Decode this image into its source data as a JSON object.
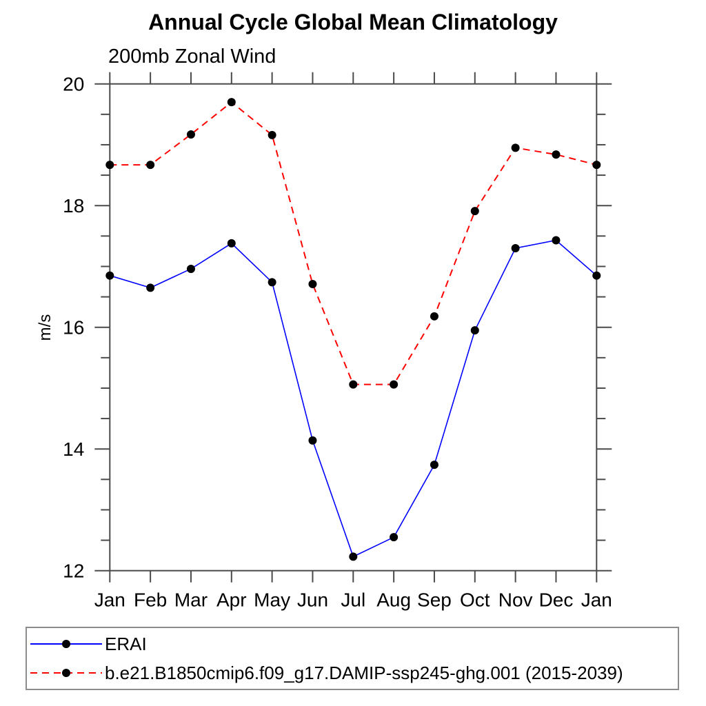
{
  "title": "Annual Cycle Global Mean Climatology",
  "subtitle": "200mb Zonal Wind",
  "chart_data": {
    "type": "line",
    "title": "Annual Cycle Global Mean Climatology",
    "subtitle": "200mb Zonal Wind",
    "xlabel": "",
    "ylabel": "m/s",
    "ylim": [
      12,
      20
    ],
    "yticks": [
      12,
      14,
      16,
      18,
      20
    ],
    "y_minor_step": 0.5,
    "grid": false,
    "legend_position": "bottom",
    "axis_color": "#4a4a4a",
    "categories": [
      "Jan",
      "Feb",
      "Mar",
      "Apr",
      "May",
      "Jun",
      "Jul",
      "Aug",
      "Sep",
      "Oct",
      "Nov",
      "Dec",
      "Jan"
    ],
    "series": [
      {
        "name": "ERAI",
        "color": "#0000ff",
        "style": "solid",
        "marker": "circle",
        "marker_color": "#000000",
        "values": [
          16.85,
          16.65,
          16.96,
          17.38,
          16.74,
          14.14,
          12.23,
          12.55,
          13.74,
          15.95,
          17.3,
          17.43,
          16.85
        ]
      },
      {
        "name": "b.e21.B1850cmip6.f09_g17.DAMIP-ssp245-ghg.001 (2015-2039)",
        "color": "#ff0000",
        "style": "dashed",
        "marker": "circle",
        "marker_color": "#000000",
        "values": [
          18.67,
          18.67,
          19.17,
          19.7,
          19.16,
          16.71,
          15.06,
          15.06,
          16.18,
          17.91,
          18.95,
          18.84,
          18.67
        ]
      }
    ]
  }
}
